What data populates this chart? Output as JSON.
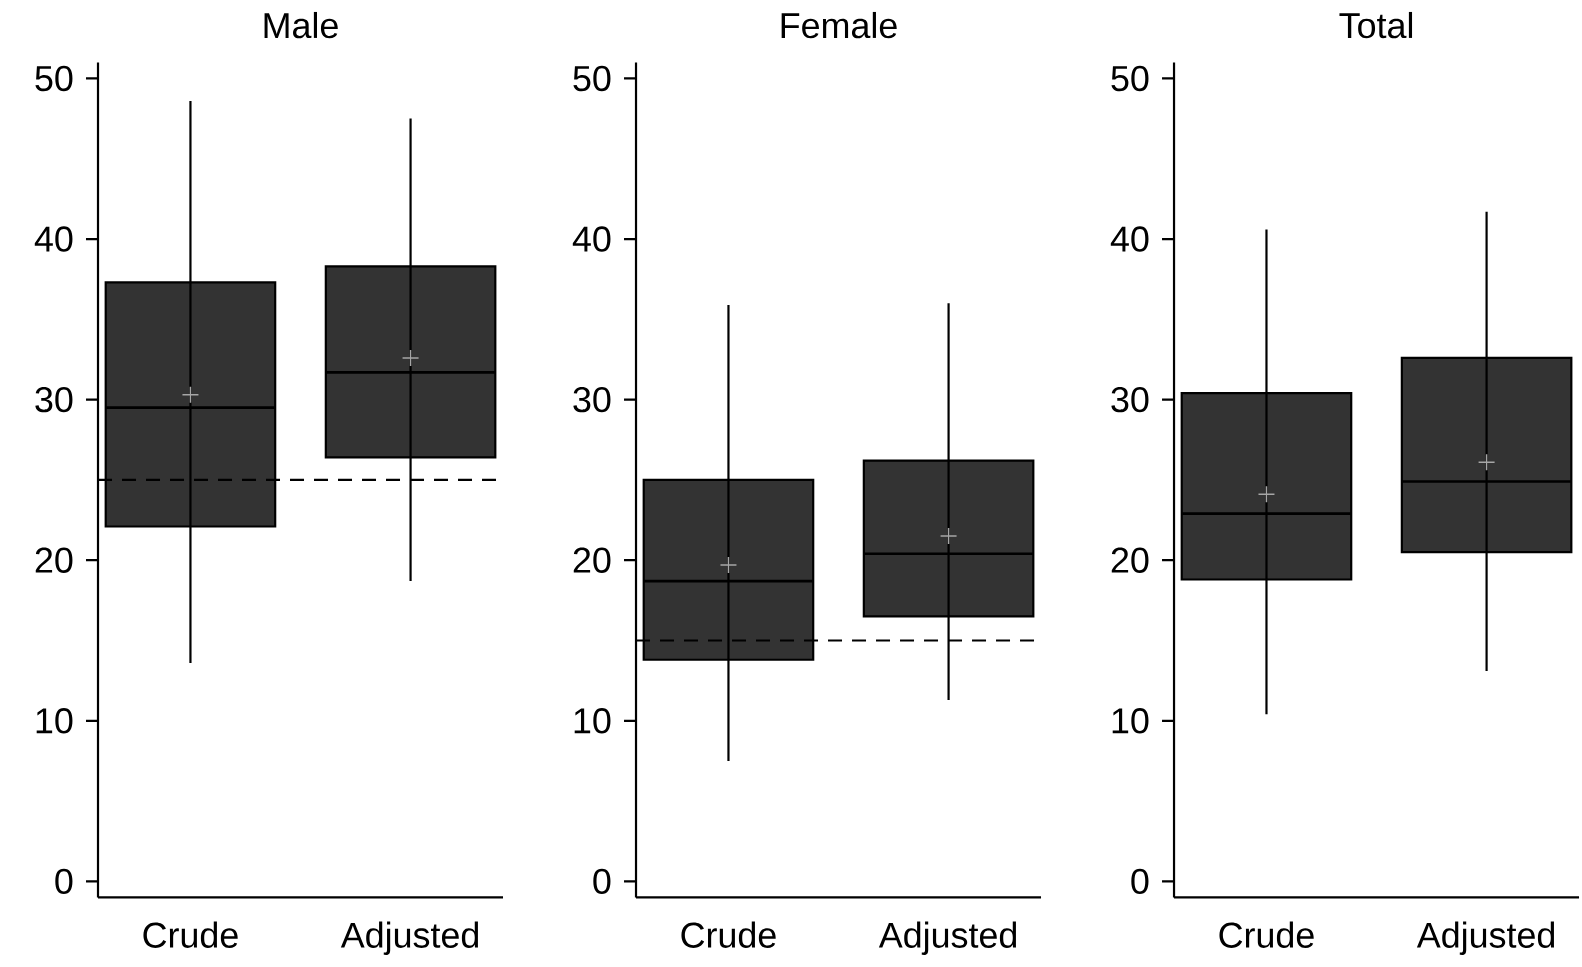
{
  "chart_data": [
    {
      "type": "box",
      "title": "Male",
      "categories": [
        "Crude",
        "Adjusted"
      ],
      "color": "#333333",
      "ylim": [
        -1,
        51
      ],
      "yticks": [
        0,
        10,
        20,
        30,
        40,
        50
      ],
      "boxes": [
        {
          "low": 13.6,
          "q1": 22.1,
          "median": 29.5,
          "q3": 37.3,
          "high": 48.6,
          "mean": 30.3
        },
        {
          "low": 18.7,
          "q1": 26.4,
          "median": 31.7,
          "q3": 38.3,
          "high": 47.5,
          "mean": 32.6
        }
      ],
      "ref_lines": [
        {
          "axis": "y",
          "value": 25,
          "color": "#000000",
          "line_style": "dashed"
        }
      ]
    },
    {
      "type": "box",
      "title": "Female",
      "categories": [
        "Crude",
        "Adjusted"
      ],
      "color": "#333333",
      "ylim": [
        -1,
        51
      ],
      "yticks": [
        0,
        10,
        20,
        30,
        40,
        50
      ],
      "boxes": [
        {
          "low": 7.5,
          "q1": 13.8,
          "median": 18.7,
          "q3": 25.0,
          "high": 35.9,
          "mean": 19.7
        },
        {
          "low": 11.3,
          "q1": 16.5,
          "median": 20.4,
          "q3": 26.2,
          "high": 36.0,
          "mean": 21.5
        }
      ],
      "ref_lines": [
        {
          "axis": "y",
          "value": 15,
          "color": "#000000",
          "line_style": "dashed"
        }
      ]
    },
    {
      "type": "box",
      "title": "Total",
      "categories": [
        "Crude",
        "Adjusted"
      ],
      "color": "#333333",
      "ylim": [
        -1,
        51
      ],
      "yticks": [
        0,
        10,
        20,
        30,
        40,
        50
      ],
      "boxes": [
        {
          "low": 10.4,
          "q1": 18.8,
          "median": 22.9,
          "q3": 30.4,
          "high": 40.6,
          "mean": 24.1
        },
        {
          "low": 13.1,
          "q1": 20.5,
          "median": 24.9,
          "q3": 32.6,
          "high": 41.7,
          "mean": 26.1
        }
      ]
    }
  ]
}
